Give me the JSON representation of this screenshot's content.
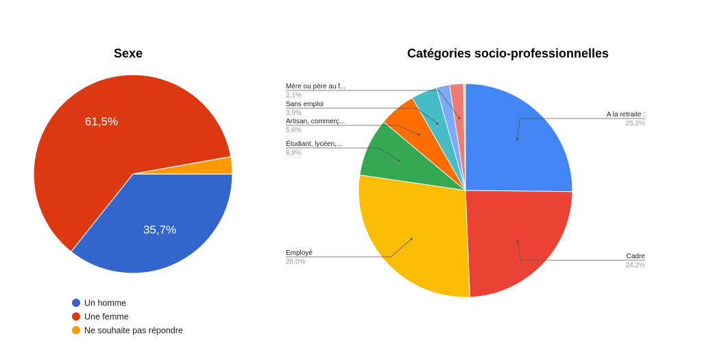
{
  "chart_data": [
    {
      "type": "pie",
      "title": "Sexe",
      "slices": [
        {
          "label": "Un homme",
          "value": 35.7,
          "display": "35,7%",
          "color": "#3366CC"
        },
        {
          "label": "Une femme",
          "value": 61.5,
          "display": "61,5%",
          "color": "#DC3912"
        },
        {
          "label": "Ne souhaite pas répondre",
          "value": 2.8,
          "display": "",
          "color": "#FF9900"
        }
      ],
      "legend_position": "bottom-left"
    },
    {
      "type": "pie",
      "title": "Catégories socio-professionnelles",
      "slices": [
        {
          "label": "A la retraite",
          "display": "A la retraite :",
          "value": 25.2,
          "pct": "25,2%",
          "color": "#4285F4"
        },
        {
          "label": "Cadre",
          "display": "Cadre",
          "value": 24.2,
          "pct": "24,2%",
          "color": "#EA4335"
        },
        {
          "label": "Employé",
          "display": "Employé",
          "value": 28.0,
          "pct": "28,0%",
          "color": "#FBBC04"
        },
        {
          "label": "Étudiant, lycéen,...",
          "display": "Étudiant, lycéen,...",
          "value": 8.8,
          "pct": "8,8%",
          "color": "#34A853"
        },
        {
          "label": "Artisan, commerç...",
          "display": "Artisan, commerç...",
          "value": 5.6,
          "pct": "5,6%",
          "color": "#FF6D01"
        },
        {
          "label": "Sans emploi",
          "display": "Sans emploi",
          "value": 3.9,
          "pct": "3,9%",
          "color": "#46BDC6"
        },
        {
          "label": "",
          "display": "",
          "value": 2.0,
          "pct": "",
          "color": "#7BAAF7"
        },
        {
          "label": "Mère ou père au f...",
          "display": "Mère ou père au f...",
          "value": 2.1,
          "pct": "2,1%",
          "color": "#F07B72"
        },
        {
          "label": "",
          "display": "",
          "value": 0.3,
          "pct": "",
          "color": "#FCD04F"
        }
      ],
      "legend_position": "labeled"
    }
  ]
}
